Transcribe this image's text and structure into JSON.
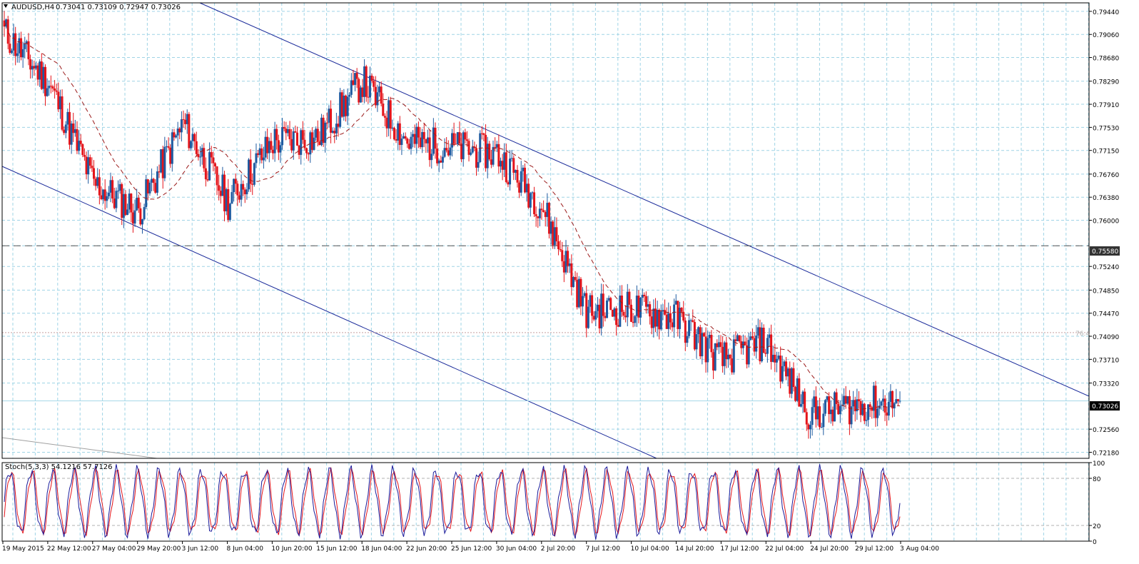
{
  "header": {
    "symbol": "AUDUSD,H4",
    "ohlc": "0.73041 0.73109 0.72947 0.73026"
  },
  "price_axis": {
    "ticks": [
      "0.79440",
      "0.79060",
      "0.78680",
      "0.78290",
      "0.77910",
      "0.77530",
      "0.77150",
      "0.76760",
      "0.76380",
      "0.76000",
      "0.75580",
      "0.75240",
      "0.74850",
      "0.74470",
      "0.74090",
      "0.73710",
      "0.73320",
      "0.73026",
      "0.72560",
      "0.72180"
    ],
    "current_price": "0.73026",
    "support_line_label": "0.75580",
    "fib_label": "76.4"
  },
  "stoch": {
    "label": "Stoch(5,3,3) 54.1216 57.7126",
    "levels": [
      "100",
      "80",
      "20",
      "0"
    ]
  },
  "time_axis": {
    "labels": [
      "19 May 2015",
      "22 May 12:00",
      "27 May 04:00",
      "29 May 20:00",
      "3 Jun 12:00",
      "8 Jun 04:00",
      "10 Jun 20:00",
      "15 Jun 12:00",
      "18 Jun 04:00",
      "22 Jun 20:00",
      "25 Jun 12:00",
      "30 Jun 04:00",
      "2 Jul 20:00",
      "7 Jul 12:00",
      "10 Jul 04:00",
      "14 Jul 20:00",
      "17 Jul 12:00",
      "22 Jul 04:00",
      "24 Jul 20:00",
      "29 Jul 12:00",
      "3 Aug 04:00"
    ]
  },
  "colors": {
    "bull": "#1e5aa0",
    "bear": "#e4141a",
    "grid": "#9fd4e6",
    "channel": "#1a2a9a",
    "ma": "#9b1b1b",
    "stoch_main": "#1a1a9a",
    "stoch_signal": "#e4141a"
  },
  "chart_data": {
    "type": "candlestick",
    "symbol": "AUDUSD",
    "timeframe": "H4",
    "y_range": [
      0.7208,
      0.7958
    ],
    "current": 0.73026,
    "horizontal_levels": [
      0.7558,
      0.7415,
      0.73026
    ],
    "key_points": [
      {
        "label": "19 May 2015",
        "close": 0.791
      },
      {
        "label": "22 May 12:00",
        "close": 0.7825
      },
      {
        "label": "27 May 04:00",
        "close": 0.766
      },
      {
        "label": "29 May 20:00",
        "close": 0.7615
      },
      {
        "label": "3 Jun 12:00",
        "close": 0.776
      },
      {
        "label": "8 Jun 04:00",
        "close": 0.763
      },
      {
        "label": "10 Jun 20:00",
        "close": 0.773
      },
      {
        "label": "15 Jun 12:00",
        "close": 0.7735
      },
      {
        "label": "18 Jun 04:00",
        "close": 0.783
      },
      {
        "label": "22 Jun 20:00",
        "close": 0.773
      },
      {
        "label": "25 Jun 12:00",
        "close": 0.772
      },
      {
        "label": "30 Jun 04:00",
        "close": 0.771
      },
      {
        "label": "2 Jul 20:00",
        "close": 0.7625
      },
      {
        "label": "7 Jul 12:00",
        "close": 0.745
      },
      {
        "label": "10 Jul 04:00",
        "close": 0.7455
      },
      {
        "label": "14 Jul 20:00",
        "close": 0.744
      },
      {
        "label": "17 Jul 12:00",
        "close": 0.737
      },
      {
        "label": "22 Jul 04:00",
        "close": 0.74
      },
      {
        "label": "24 Jul 20:00",
        "close": 0.728
      },
      {
        "label": "29 Jul 12:00",
        "close": 0.7295
      },
      {
        "label": "3 Aug 04:00",
        "close": 0.73026
      }
    ]
  }
}
